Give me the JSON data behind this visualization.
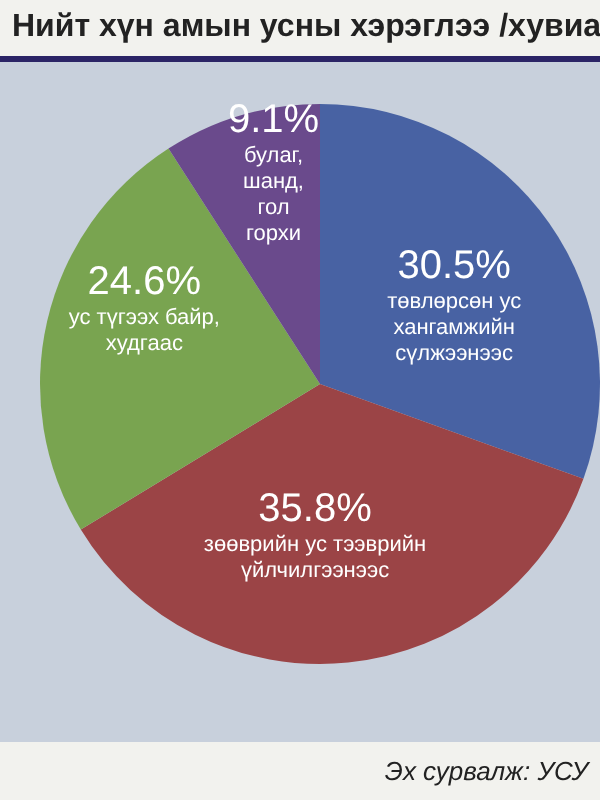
{
  "chart_data": {
    "type": "pie",
    "title": "Нийт хүн амын усны хэрэглээ /хувиа",
    "categories": [
      "төвлөрсөн ус хангамжийн сүлжээнээс",
      "зөөврийн ус тээврийн үйлчилгээнээс",
      "ус түгээх байр, худгаас",
      "булаг, шанд, гол горхи"
    ],
    "values": [
      30.5,
      35.8,
      24.6,
      9.1
    ],
    "value_labels": [
      "30.5%",
      "35.8%",
      "24.6%",
      "9.1%"
    ],
    "colors": [
      "#4862a3",
      "#9b4446",
      "#79a450",
      "#6a4a8c"
    ],
    "annotations": [
      "Эх сурвалж: УСУ"
    ]
  }
}
